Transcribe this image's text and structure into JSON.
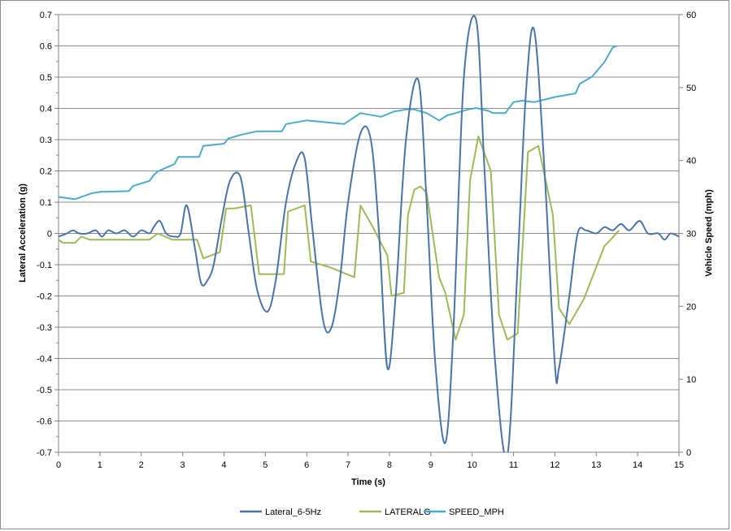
{
  "chart_data": {
    "type": "line",
    "title": "",
    "xlabel": "Time (s)",
    "ylabel": "Lateral Acceleration (g)",
    "y2label": "Vehicle Speed (mph)",
    "xlim": [
      0,
      15
    ],
    "ylim": [
      -0.7,
      0.7
    ],
    "y2lim": [
      0,
      60
    ],
    "x_ticks": [
      "0",
      "1",
      "2",
      "3",
      "4",
      "5",
      "6",
      "7",
      "8",
      "9",
      "10",
      "11",
      "12",
      "13",
      "14",
      "15"
    ],
    "y_ticks": [
      "0.7",
      "0.6",
      "0.5",
      "0.4",
      "0.3",
      "0.2",
      "0.1",
      "0",
      "-0.1",
      "-0.2",
      "-0.3",
      "-0.4",
      "-0.5",
      "-0.6",
      "-0.7"
    ],
    "y2_ticks": [
      "60",
      "50",
      "40",
      "30",
      "20",
      "10",
      "0"
    ],
    "grid": "horizontal",
    "legend_position": "bottom",
    "colors": {
      "Lateral_6-5Hz": "#4a74a8",
      "LATERALG": "#9bbb59",
      "SPEED_MPH": "#4bacc6",
      "grid": "#8c8c8c"
    },
    "series": [
      {
        "name": "Lateral_6-5Hz",
        "axis": "left",
        "x": [
          0,
          0.2,
          0.35,
          0.5,
          0.7,
          0.9,
          1.05,
          1.2,
          1.4,
          1.6,
          1.8,
          2.0,
          2.2,
          2.3,
          2.45,
          2.6,
          2.8,
          2.95,
          3.1,
          3.3,
          3.45,
          3.6,
          3.75,
          3.95,
          4.15,
          4.4,
          4.6,
          4.8,
          5.05,
          5.25,
          5.5,
          5.75,
          5.95,
          6.15,
          6.4,
          6.6,
          6.8,
          7.0,
          7.3,
          7.55,
          7.75,
          7.95,
          8.15,
          8.4,
          8.7,
          8.9,
          9.1,
          9.35,
          9.55,
          9.8,
          10.1,
          10.3,
          10.55,
          10.85,
          11.1,
          11.3,
          11.5,
          11.75,
          12.0,
          12.1,
          12.35,
          12.55,
          12.75,
          13.0,
          13.2,
          13.4,
          13.6,
          13.8,
          14.05,
          14.25,
          14.5,
          14.65,
          14.8,
          15.0
        ],
        "values": [
          -0.01,
          0.0,
          0.01,
          0.0,
          0.0,
          0.01,
          -0.01,
          0.01,
          0.0,
          0.01,
          -0.01,
          0.01,
          0.0,
          0.02,
          0.04,
          0.0,
          -0.01,
          0.0,
          0.09,
          -0.05,
          -0.16,
          -0.15,
          -0.1,
          0.05,
          0.17,
          0.18,
          0.0,
          -0.18,
          -0.25,
          -0.15,
          0.1,
          0.23,
          0.24,
          0.0,
          -0.28,
          -0.3,
          -0.15,
          0.1,
          0.32,
          0.3,
          0.0,
          -0.43,
          -0.2,
          0.3,
          0.49,
          0.1,
          -0.4,
          -0.67,
          -0.3,
          0.5,
          0.68,
          0.2,
          -0.4,
          -0.71,
          -0.1,
          0.45,
          0.65,
          0.2,
          -0.42,
          -0.43,
          -0.2,
          0.0,
          0.01,
          0.0,
          0.02,
          0.01,
          0.03,
          0.01,
          0.04,
          0.0,
          0.0,
          -0.02,
          0.0,
          -0.01
        ]
      },
      {
        "name": "LATERALG",
        "axis": "left",
        "x": [
          0,
          0.1,
          0.4,
          0.55,
          0.75,
          1.0,
          1.3,
          1.6,
          1.9,
          2.2,
          2.4,
          2.75,
          3.1,
          3.35,
          3.5,
          3.9,
          4.05,
          4.25,
          4.65,
          4.85,
          5.1,
          5.45,
          5.55,
          5.95,
          6.1,
          6.6,
          7.15,
          7.3,
          7.6,
          7.95,
          8.05,
          8.35,
          8.45,
          8.6,
          8.75,
          8.9,
          9.2,
          9.35,
          9.6,
          9.8,
          9.95,
          10.15,
          10.45,
          10.65,
          10.85,
          11.1,
          11.35,
          11.6,
          11.95,
          12.1,
          12.35,
          12.7,
          13.2,
          13.35,
          13.55
        ],
        "values": [
          -0.02,
          -0.03,
          -0.03,
          -0.01,
          -0.02,
          -0.02,
          -0.02,
          -0.02,
          -0.02,
          -0.02,
          0.0,
          -0.02,
          -0.02,
          -0.02,
          -0.08,
          -0.06,
          0.08,
          0.08,
          0.09,
          -0.13,
          -0.13,
          -0.13,
          0.07,
          0.09,
          -0.09,
          -0.11,
          -0.14,
          0.09,
          0.02,
          -0.07,
          -0.2,
          -0.19,
          0.06,
          0.14,
          0.15,
          0.13,
          -0.14,
          -0.19,
          -0.34,
          -0.26,
          0.17,
          0.31,
          0.2,
          -0.26,
          -0.34,
          -0.32,
          0.26,
          0.28,
          0.06,
          -0.24,
          -0.29,
          -0.21,
          -0.04,
          -0.02,
          0.01
        ]
      },
      {
        "name": "SPEED_MPH",
        "axis": "right",
        "x": [
          0,
          0.4,
          0.8,
          1.0,
          1.7,
          1.8,
          2.2,
          2.3,
          2.4,
          2.8,
          2.9,
          3.4,
          3.5,
          4.0,
          4.1,
          4.4,
          4.8,
          5.4,
          5.5,
          6.0,
          6.9,
          7.3,
          7.8,
          8.1,
          8.4,
          8.6,
          8.9,
          9.2,
          9.4,
          9.6,
          9.9,
          10.1,
          10.4,
          10.5,
          10.8,
          11.0,
          11.2,
          11.5,
          12.0,
          12.5,
          12.6,
          12.9,
          13.2,
          13.4,
          13.5
        ],
        "values": [
          35.0,
          34.7,
          35.5,
          35.7,
          35.8,
          36.5,
          37.2,
          38.0,
          38.5,
          39.5,
          40.5,
          40.5,
          42.0,
          42.3,
          43.0,
          43.5,
          44.0,
          44.0,
          45.0,
          45.5,
          45.0,
          46.5,
          46.0,
          46.7,
          47.0,
          47.0,
          46.5,
          45.5,
          46.2,
          46.5,
          47.0,
          47.2,
          46.8,
          46.5,
          46.5,
          48.0,
          48.2,
          48.0,
          48.7,
          49.2,
          50.5,
          51.5,
          53.5,
          55.5,
          55.7
        ]
      }
    ]
  }
}
